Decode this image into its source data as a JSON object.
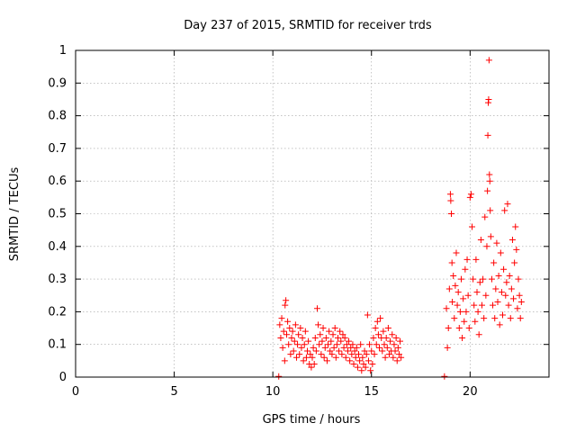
{
  "chart_data": {
    "type": "scatter",
    "title": "Day 237 of 2015, SRMTID for receiver trds",
    "xlabel": "GPS time / hours",
    "ylabel": "SRMTID / TECUs",
    "xlim": [
      0,
      24
    ],
    "ylim": [
      0,
      1
    ],
    "xticks": [
      0,
      5,
      10,
      15,
      20
    ],
    "yticks": [
      0,
      0.1,
      0.2,
      0.3,
      0.4,
      0.5,
      0.6,
      0.7,
      0.8,
      0.9,
      1
    ],
    "xtick_labels": [
      "0",
      "5",
      "10",
      "15",
      "20"
    ],
    "ytick_labels": [
      "0",
      "0.1",
      "0.2",
      "0.3",
      "0.4",
      "0.5",
      "0.6",
      "0.7",
      "0.8",
      "0.9",
      "1"
    ],
    "grid": true,
    "marker": "plus",
    "marker_color": "#ff0000",
    "series": [
      {
        "name": "SRMTID",
        "points": [
          [
            10.3,
            0.002
          ],
          [
            18.7,
            0.002
          ],
          [
            10.35,
            0.16
          ],
          [
            10.4,
            0.12
          ],
          [
            10.45,
            0.18
          ],
          [
            10.5,
            0.09
          ],
          [
            10.55,
            0.14
          ],
          [
            10.6,
            0.05
          ],
          [
            10.62,
            0.22
          ],
          [
            10.66,
            0.235
          ],
          [
            10.7,
            0.13
          ],
          [
            10.75,
            0.17
          ],
          [
            10.8,
            0.1
          ],
          [
            10.85,
            0.15
          ],
          [
            10.9,
            0.07
          ],
          [
            10.95,
            0.12
          ],
          [
            11.0,
            0.14
          ],
          [
            11.05,
            0.08
          ],
          [
            11.1,
            0.11
          ],
          [
            11.15,
            0.16
          ],
          [
            11.2,
            0.06
          ],
          [
            11.25,
            0.1
          ],
          [
            11.3,
            0.13
          ],
          [
            11.35,
            0.07
          ],
          [
            11.4,
            0.15
          ],
          [
            11.45,
            0.09
          ],
          [
            11.5,
            0.12
          ],
          [
            11.55,
            0.05
          ],
          [
            11.6,
            0.1
          ],
          [
            11.65,
            0.14
          ],
          [
            11.7,
            0.06
          ],
          [
            11.75,
            0.08
          ],
          [
            11.8,
            0.11
          ],
          [
            11.85,
            0.04
          ],
          [
            11.9,
            0.07
          ],
          [
            11.95,
            0.03
          ],
          [
            12.0,
            0.06
          ],
          [
            12.05,
            0.09
          ],
          [
            12.1,
            0.04
          ],
          [
            12.15,
            0.12
          ],
          [
            12.2,
            0.08
          ],
          [
            12.25,
            0.21
          ],
          [
            12.3,
            0.16
          ],
          [
            12.35,
            0.1
          ],
          [
            12.4,
            0.13
          ],
          [
            12.45,
            0.07
          ],
          [
            12.5,
            0.11
          ],
          [
            12.55,
            0.15
          ],
          [
            12.6,
            0.06
          ],
          [
            12.65,
            0.09
          ],
          [
            12.7,
            0.12
          ],
          [
            12.75,
            0.05
          ],
          [
            12.8,
            0.1
          ],
          [
            12.85,
            0.14
          ],
          [
            12.9,
            0.08
          ],
          [
            12.95,
            0.11
          ],
          [
            13.0,
            0.07
          ],
          [
            13.05,
            0.13
          ],
          [
            13.1,
            0.09
          ],
          [
            13.15,
            0.15
          ],
          [
            13.2,
            0.06
          ],
          [
            13.25,
            0.1
          ],
          [
            13.3,
            0.12
          ],
          [
            13.35,
            0.08
          ],
          [
            13.4,
            0.14
          ],
          [
            13.45,
            0.11
          ],
          [
            13.5,
            0.07
          ],
          [
            13.55,
            0.13
          ],
          [
            13.6,
            0.09
          ],
          [
            13.65,
            0.12
          ],
          [
            13.7,
            0.06
          ],
          [
            13.75,
            0.1
          ],
          [
            13.8,
            0.08
          ],
          [
            13.85,
            0.11
          ],
          [
            13.9,
            0.05
          ],
          [
            13.95,
            0.09
          ],
          [
            14.0,
            0.07
          ],
          [
            14.05,
            0.1
          ],
          [
            14.1,
            0.04
          ],
          [
            14.15,
            0.08
          ],
          [
            14.2,
            0.06
          ],
          [
            14.25,
            0.09
          ],
          [
            14.3,
            0.03
          ],
          [
            14.35,
            0.07
          ],
          [
            14.4,
            0.05
          ],
          [
            14.45,
            0.1
          ],
          [
            14.5,
            0.02
          ],
          [
            14.55,
            0.06
          ],
          [
            14.6,
            0.04
          ],
          [
            14.65,
            0.08
          ],
          [
            14.7,
            0.03
          ],
          [
            14.75,
            0.07
          ],
          [
            14.8,
            0.19
          ],
          [
            14.85,
            0.05
          ],
          [
            14.9,
            0.1
          ],
          [
            14.95,
            0.02
          ],
          [
            15.0,
            0.08
          ],
          [
            15.05,
            0.04
          ],
          [
            15.1,
            0.12
          ],
          [
            15.15,
            0.07
          ],
          [
            15.2,
            0.15
          ],
          [
            15.25,
            0.1
          ],
          [
            15.3,
            0.17
          ],
          [
            15.35,
            0.13
          ],
          [
            15.4,
            0.09
          ],
          [
            15.45,
            0.18
          ],
          [
            15.5,
            0.12
          ],
          [
            15.55,
            0.08
          ],
          [
            15.6,
            0.14
          ],
          [
            15.65,
            0.1
          ],
          [
            15.7,
            0.06
          ],
          [
            15.75,
            0.12
          ],
          [
            15.8,
            0.09
          ],
          [
            15.85,
            0.15
          ],
          [
            15.9,
            0.07
          ],
          [
            15.95,
            0.11
          ],
          [
            16.0,
            0.08
          ],
          [
            16.05,
            0.13
          ],
          [
            16.1,
            0.06
          ],
          [
            16.15,
            0.1
          ],
          [
            16.2,
            0.08
          ],
          [
            16.25,
            0.12
          ],
          [
            16.3,
            0.05
          ],
          [
            16.35,
            0.09
          ],
          [
            16.4,
            0.07
          ],
          [
            16.45,
            0.11
          ],
          [
            16.5,
            0.06
          ],
          [
            18.8,
            0.21
          ],
          [
            18.85,
            0.09
          ],
          [
            18.9,
            0.15
          ],
          [
            18.95,
            0.27
          ],
          [
            19.0,
            0.56
          ],
          [
            19.02,
            0.54
          ],
          [
            19.05,
            0.5
          ],
          [
            19.08,
            0.35
          ],
          [
            19.1,
            0.23
          ],
          [
            19.15,
            0.31
          ],
          [
            19.2,
            0.18
          ],
          [
            19.25,
            0.28
          ],
          [
            19.3,
            0.38
          ],
          [
            19.35,
            0.22
          ],
          [
            19.4,
            0.26
          ],
          [
            19.45,
            0.15
          ],
          [
            19.5,
            0.2
          ],
          [
            19.55,
            0.3
          ],
          [
            19.6,
            0.12
          ],
          [
            19.65,
            0.24
          ],
          [
            19.7,
            0.17
          ],
          [
            19.75,
            0.33
          ],
          [
            19.8,
            0.2
          ],
          [
            19.85,
            0.36
          ],
          [
            19.9,
            0.25
          ],
          [
            19.95,
            0.15
          ],
          [
            20.0,
            0.55
          ],
          [
            20.05,
            0.56
          ],
          [
            20.1,
            0.46
          ],
          [
            20.15,
            0.3
          ],
          [
            20.2,
            0.22
          ],
          [
            20.25,
            0.17
          ],
          [
            20.3,
            0.36
          ],
          [
            20.35,
            0.26
          ],
          [
            20.4,
            0.2
          ],
          [
            20.45,
            0.13
          ],
          [
            20.5,
            0.29
          ],
          [
            20.55,
            0.42
          ],
          [
            20.6,
            0.22
          ],
          [
            20.65,
            0.3
          ],
          [
            20.7,
            0.18
          ],
          [
            20.75,
            0.49
          ],
          [
            20.8,
            0.25
          ],
          [
            20.85,
            0.4
          ],
          [
            20.88,
            0.57
          ],
          [
            20.9,
            0.74
          ],
          [
            20.92,
            0.84
          ],
          [
            20.94,
            0.85
          ],
          [
            20.96,
            0.97
          ],
          [
            20.98,
            0.62
          ],
          [
            21.0,
            0.6
          ],
          [
            21.02,
            0.51
          ],
          [
            21.05,
            0.43
          ],
          [
            21.1,
            0.3
          ],
          [
            21.15,
            0.22
          ],
          [
            21.2,
            0.35
          ],
          [
            21.25,
            0.18
          ],
          [
            21.3,
            0.27
          ],
          [
            21.35,
            0.41
          ],
          [
            21.4,
            0.23
          ],
          [
            21.45,
            0.31
          ],
          [
            21.5,
            0.16
          ],
          [
            21.55,
            0.38
          ],
          [
            21.6,
            0.26
          ],
          [
            21.65,
            0.19
          ],
          [
            21.7,
            0.33
          ],
          [
            21.75,
            0.51
          ],
          [
            21.8,
            0.25
          ],
          [
            21.85,
            0.29
          ],
          [
            21.9,
            0.53
          ],
          [
            21.95,
            0.22
          ],
          [
            22.0,
            0.31
          ],
          [
            22.05,
            0.18
          ],
          [
            22.1,
            0.27
          ],
          [
            22.15,
            0.42
          ],
          [
            22.2,
            0.24
          ],
          [
            22.25,
            0.35
          ],
          [
            22.3,
            0.46
          ],
          [
            22.35,
            0.39
          ],
          [
            22.4,
            0.21
          ],
          [
            22.45,
            0.3
          ],
          [
            22.5,
            0.25
          ],
          [
            22.55,
            0.18
          ],
          [
            22.6,
            0.23
          ]
        ]
      }
    ]
  }
}
